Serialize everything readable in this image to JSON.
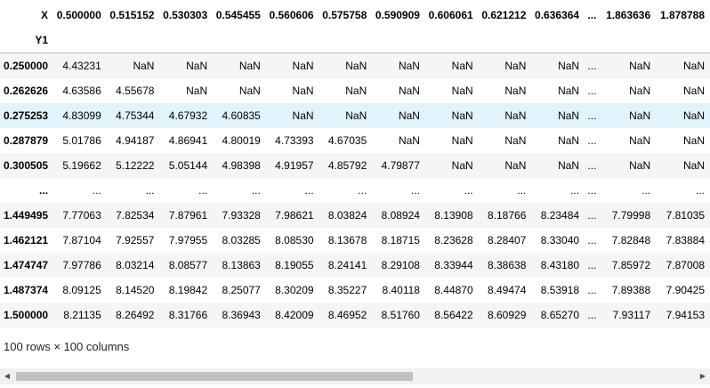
{
  "table": {
    "columns_label": "X",
    "index_name": "Y1",
    "columns": [
      "0.500000",
      "0.515152",
      "0.530303",
      "0.545455",
      "0.560606",
      "0.575758",
      "0.590909",
      "0.606061",
      "0.621212",
      "0.636364",
      "...",
      "1.863636",
      "1.878788"
    ],
    "rows": [
      {
        "index": "0.250000",
        "values": [
          "4.43231",
          "NaN",
          "NaN",
          "NaN",
          "NaN",
          "NaN",
          "NaN",
          "NaN",
          "NaN",
          "NaN",
          "...",
          "NaN",
          "NaN"
        ]
      },
      {
        "index": "0.262626",
        "values": [
          "4.63586",
          "4.55678",
          "NaN",
          "NaN",
          "NaN",
          "NaN",
          "NaN",
          "NaN",
          "NaN",
          "NaN",
          "...",
          "NaN",
          "NaN"
        ]
      },
      {
        "index": "0.275253",
        "values": [
          "4.83099",
          "4.75344",
          "4.67932",
          "4.60835",
          "NaN",
          "NaN",
          "NaN",
          "NaN",
          "NaN",
          "NaN",
          "...",
          "NaN",
          "NaN"
        ]
      },
      {
        "index": "0.287879",
        "values": [
          "5.01786",
          "4.94187",
          "4.86941",
          "4.80019",
          "4.73393",
          "4.67035",
          "NaN",
          "NaN",
          "NaN",
          "NaN",
          "...",
          "NaN",
          "NaN"
        ]
      },
      {
        "index": "0.300505",
        "values": [
          "5.19662",
          "5.12222",
          "5.05144",
          "4.98398",
          "4.91957",
          "4.85792",
          "4.79877",
          "NaN",
          "NaN",
          "NaN",
          "...",
          "NaN",
          "NaN"
        ]
      },
      {
        "index": "...",
        "values": [
          "...",
          "...",
          "...",
          "...",
          "...",
          "...",
          "...",
          "...",
          "...",
          "...",
          "...",
          "...",
          "..."
        ]
      },
      {
        "index": "1.449495",
        "values": [
          "7.77063",
          "7.82534",
          "7.87961",
          "7.93328",
          "7.98621",
          "8.03824",
          "8.08924",
          "8.13908",
          "8.18766",
          "8.23484",
          "...",
          "7.79998",
          "7.81035"
        ]
      },
      {
        "index": "1.462121",
        "values": [
          "7.87104",
          "7.92557",
          "7.97955",
          "8.03285",
          "8.08530",
          "8.13678",
          "8.18715",
          "8.23628",
          "8.28407",
          "8.33040",
          "...",
          "7.82848",
          "7.83884"
        ]
      },
      {
        "index": "1.474747",
        "values": [
          "7.97786",
          "8.03214",
          "8.08577",
          "8.13863",
          "8.19055",
          "8.24141",
          "8.29108",
          "8.33944",
          "8.38638",
          "8.43180",
          "...",
          "7.85972",
          "7.87008"
        ]
      },
      {
        "index": "1.487374",
        "values": [
          "8.09125",
          "8.14520",
          "8.19842",
          "8.25077",
          "8.30209",
          "8.35227",
          "8.40118",
          "8.44870",
          "8.49474",
          "8.53918",
          "...",
          "7.89388",
          "7.90425"
        ]
      },
      {
        "index": "1.500000",
        "values": [
          "8.21135",
          "8.26492",
          "8.31766",
          "8.36943",
          "8.42009",
          "8.46952",
          "8.51760",
          "8.56422",
          "8.60929",
          "8.65270",
          "...",
          "7.93117",
          "7.94153"
        ]
      }
    ],
    "highlighted_row": 2
  },
  "shape_text": "100 rows × 100 columns",
  "scrollbar": {
    "left_arrow": "◀",
    "right_arrow": "▶",
    "position_fraction": 0.0
  }
}
